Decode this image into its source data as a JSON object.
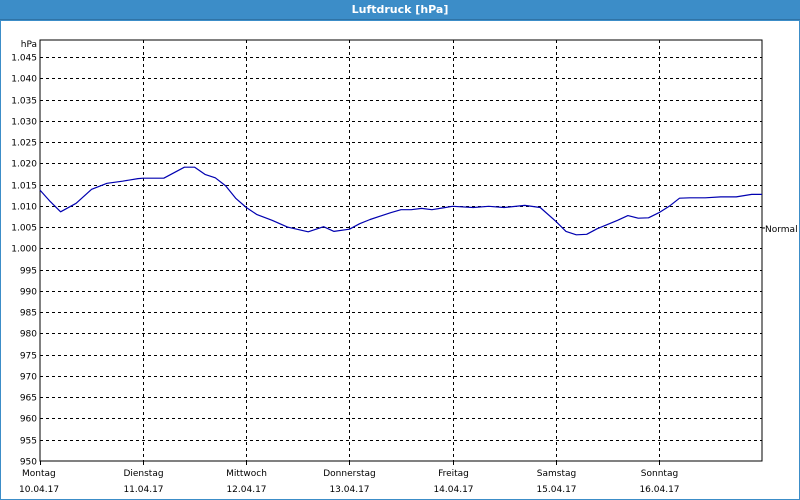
{
  "window": {
    "title": "Luftdruck [hPa]"
  },
  "chart_data": {
    "type": "line",
    "title": "Luftdruck [hPa]",
    "ylabel": "hPa",
    "ylim": [
      950,
      1049
    ],
    "ytick_values": [
      950,
      955,
      960,
      965,
      970,
      975,
      980,
      985,
      990,
      995,
      1000,
      1005,
      1010,
      1015,
      1020,
      1025,
      1030,
      1035,
      1040,
      1045
    ],
    "ytick_labels": [
      "950",
      "955",
      "960",
      "965",
      "970",
      "975",
      "980",
      "985",
      "990",
      "995",
      "1.000",
      "1.005",
      "1.010",
      "1.015",
      "1.020",
      "1.025",
      "1.030",
      "1.035",
      "1.040",
      "1.045"
    ],
    "xlim": [
      0,
      7
    ],
    "xtick_values": [
      0,
      1,
      2,
      3,
      4,
      5,
      6
    ],
    "xtick_days": [
      "Montag",
      "Dienstag",
      "Mittwoch",
      "Donnerstag",
      "Freitag",
      "Samstag",
      "Sonntag"
    ],
    "xtick_dates": [
      "10.04.17",
      "11.04.17",
      "12.04.17",
      "13.04.17",
      "14.04.17",
      "15.04.17",
      "16.04.17"
    ],
    "grid": true,
    "annotation": {
      "label": "Normal",
      "y": 1004.8
    },
    "line_color": "#0000b0",
    "series": [
      {
        "x": [
          0,
          0.1,
          0.2,
          0.35,
          0.5,
          0.65,
          0.8,
          0.95,
          1.0,
          1.1,
          1.2,
          1.3,
          1.4,
          1.5,
          1.6,
          1.7,
          1.8,
          1.9,
          2.0,
          2.1,
          2.25,
          2.4,
          2.6,
          2.75,
          2.85,
          3.0,
          3.1,
          3.2,
          3.3,
          3.4,
          3.5,
          3.6,
          3.7,
          3.8,
          3.9,
          4.0,
          4.2,
          4.35,
          4.5,
          4.7,
          4.85,
          5.0,
          5.1,
          5.2,
          5.3,
          5.4,
          5.5,
          5.6,
          5.7,
          5.8,
          5.9,
          6.0,
          6.1,
          6.2,
          6.3,
          6.45,
          6.6,
          6.75,
          6.9,
          7.0
        ],
        "y": [
          1013.7,
          1011.0,
          1008.6,
          1010.6,
          1013.9,
          1015.3,
          1015.8,
          1016.4,
          1016.5,
          1016.5,
          1016.5,
          1017.8,
          1019.1,
          1019.1,
          1017.4,
          1016.6,
          1014.7,
          1011.7,
          1009.6,
          1008.0,
          1006.6,
          1005.0,
          1003.9,
          1005.1,
          1004.0,
          1004.5,
          1005.8,
          1006.8,
          1007.6,
          1008.4,
          1009.1,
          1009.1,
          1009.4,
          1009.1,
          1009.5,
          1009.9,
          1009.6,
          1009.9,
          1009.6,
          1010.1,
          1009.6,
          1006.4,
          1004.0,
          1003.2,
          1003.3,
          1004.6,
          1005.6,
          1006.6,
          1007.7,
          1007.1,
          1007.2,
          1008.4,
          1009.9,
          1011.8,
          1011.9,
          1011.9,
          1012.1,
          1012.1,
          1012.7,
          1012.7
        ]
      }
    ]
  }
}
